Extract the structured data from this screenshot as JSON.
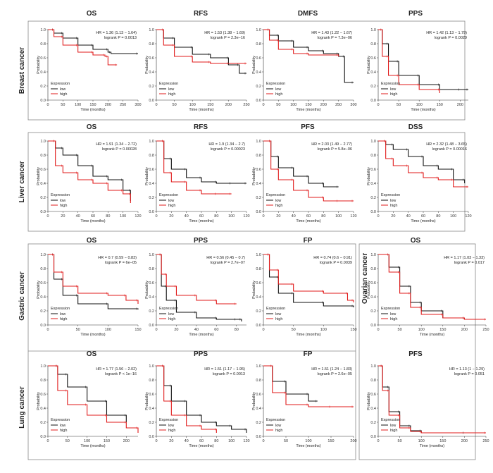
{
  "colors": {
    "low": "#111111",
    "high": "#e01b1b",
    "frame": "#888888"
  },
  "legend_title": "Expression",
  "legend_low": "low",
  "legend_high": "high",
  "xlabel": "Time (months)",
  "ylabel": "Probability",
  "rows": [
    {
      "label": "Breast cancer"
    },
    {
      "label": "Liver cancer"
    },
    {
      "label": "Gastric cancer"
    },
    {
      "label": "Lung cancer"
    }
  ],
  "ovarian_label": "Ovarian cancer",
  "chart_data": [
    {
      "type": "line",
      "title": "OS",
      "hr": "HR = 1.36 (1.13 − 1.64)",
      "p": "logrank P = 0.0013",
      "xmax": 300,
      "xticks": [
        0,
        50,
        100,
        150,
        200,
        250,
        300
      ],
      "yticks": [
        0,
        0.2,
        0.4,
        0.6,
        0.8,
        1.0
      ],
      "series": [
        {
          "name": "low",
          "x": [
            0,
            20,
            50,
            100,
            150,
            200,
            210,
            300
          ],
          "y": [
            1.0,
            0.95,
            0.88,
            0.78,
            0.72,
            0.68,
            0.66,
            0.66
          ]
        },
        {
          "name": "high",
          "x": [
            0,
            20,
            50,
            100,
            150,
            190,
            200,
            230
          ],
          "y": [
            1.0,
            0.9,
            0.78,
            0.68,
            0.64,
            0.62,
            0.5,
            0.5
          ]
        }
      ]
    },
    {
      "type": "line",
      "title": "RFS",
      "hr": "HR = 1.53 (1.38 − 1.69)",
      "p": "logrank P = 2.3e−16",
      "xmax": 250,
      "xticks": [
        0,
        50,
        100,
        150,
        200,
        250
      ],
      "yticks": [
        0,
        0.2,
        0.4,
        0.6,
        0.8,
        1.0
      ],
      "series": [
        {
          "name": "low",
          "x": [
            0,
            20,
            50,
            100,
            150,
            200,
            230,
            250
          ],
          "y": [
            1.0,
            0.88,
            0.75,
            0.65,
            0.6,
            0.5,
            0.38,
            0.38
          ]
        },
        {
          "name": "high",
          "x": [
            0,
            20,
            50,
            100,
            150,
            200,
            250
          ],
          "y": [
            1.0,
            0.78,
            0.62,
            0.54,
            0.52,
            0.52,
            0.52
          ]
        }
      ]
    },
    {
      "type": "line",
      "title": "DMFS",
      "hr": "HR = 1.43 (1.22 − 1.67)",
      "p": "logrank P = 7.3e−06",
      "xmax": 300,
      "xticks": [
        0,
        50,
        100,
        150,
        200,
        250,
        300
      ],
      "yticks": [
        0,
        0.2,
        0.4,
        0.6,
        0.8,
        1.0
      ],
      "series": [
        {
          "name": "low",
          "x": [
            0,
            20,
            50,
            100,
            150,
            200,
            250,
            270,
            300
          ],
          "y": [
            1.0,
            0.92,
            0.84,
            0.75,
            0.7,
            0.66,
            0.62,
            0.25,
            0.25
          ]
        },
        {
          "name": "high",
          "x": [
            0,
            20,
            50,
            100,
            150,
            250
          ],
          "y": [
            1.0,
            0.85,
            0.72,
            0.66,
            0.64,
            0.62
          ]
        }
      ]
    },
    {
      "type": "line",
      "title": "PPS",
      "hr": "HR = 1.42 (1.13 − 1.79)",
      "p": "logrank P = 0.0029",
      "xmax": 220,
      "xticks": [
        0,
        50,
        100,
        150,
        200
      ],
      "yticks": [
        0,
        0.2,
        0.4,
        0.6,
        0.8,
        1.0
      ],
      "series": [
        {
          "name": "low",
          "x": [
            0,
            10,
            25,
            50,
            100,
            150,
            200,
            220
          ],
          "y": [
            1.0,
            0.8,
            0.55,
            0.35,
            0.22,
            0.15,
            0.15,
            0.15
          ]
        },
        {
          "name": "high",
          "x": [
            0,
            10,
            25,
            50,
            100,
            150
          ],
          "y": [
            1.0,
            0.62,
            0.35,
            0.22,
            0.15,
            0.1
          ]
        }
      ]
    },
    {
      "type": "line",
      "title": "OS",
      "hr": "HR = 1.91 (1.34 − 2.72)",
      "p": "logrank P = 0.00028",
      "xmax": 120,
      "xticks": [
        0,
        20,
        40,
        60,
        80,
        100,
        120
      ],
      "yticks": [
        0,
        0.2,
        0.4,
        0.6,
        0.8,
        1.0
      ],
      "series": [
        {
          "name": "low",
          "x": [
            0,
            10,
            20,
            40,
            60,
            80,
            100,
            110
          ],
          "y": [
            1.0,
            0.9,
            0.8,
            0.65,
            0.5,
            0.45,
            0.3,
            0.15
          ]
        },
        {
          "name": "high",
          "x": [
            0,
            10,
            20,
            40,
            60,
            80,
            100,
            110
          ],
          "y": [
            1.0,
            0.65,
            0.55,
            0.45,
            0.4,
            0.3,
            0.25,
            0.12
          ]
        }
      ]
    },
    {
      "type": "line",
      "title": "RFS",
      "hr": "HR = 1.9 (1.34 − 2.7)",
      "p": "logrank P = 0.00023",
      "xmax": 120,
      "xticks": [
        0,
        20,
        40,
        60,
        80,
        100,
        120
      ],
      "yticks": [
        0,
        0.2,
        0.4,
        0.6,
        0.8,
        1.0
      ],
      "series": [
        {
          "name": "low",
          "x": [
            0,
            10,
            20,
            40,
            60,
            80,
            100,
            120
          ],
          "y": [
            1.0,
            0.75,
            0.6,
            0.48,
            0.42,
            0.4,
            0.4,
            0.4
          ]
        },
        {
          "name": "high",
          "x": [
            0,
            10,
            20,
            40,
            60,
            80,
            100
          ],
          "y": [
            1.0,
            0.55,
            0.42,
            0.3,
            0.25,
            0.25,
            0.25
          ]
        }
      ]
    },
    {
      "type": "line",
      "title": "PFS",
      "hr": "HR = 2.03 (1.49 − 2.77)",
      "p": "logrank P = 5.8e−06",
      "xmax": 120,
      "xticks": [
        0,
        20,
        40,
        60,
        80,
        100,
        120
      ],
      "yticks": [
        0,
        0.2,
        0.4,
        0.6,
        0.8,
        1.0
      ],
      "series": [
        {
          "name": "low",
          "x": [
            0,
            10,
            20,
            40,
            60,
            80,
            100
          ],
          "y": [
            1.0,
            0.78,
            0.62,
            0.5,
            0.4,
            0.35,
            0.35
          ]
        },
        {
          "name": "high",
          "x": [
            0,
            10,
            20,
            40,
            60,
            80,
            100,
            120
          ],
          "y": [
            1.0,
            0.6,
            0.45,
            0.3,
            0.2,
            0.15,
            0.15,
            0.15
          ]
        }
      ]
    },
    {
      "type": "line",
      "title": "DSS",
      "hr": "HR = 2.32 (1.48 − 3.65)",
      "p": "logrank P = 0.00016",
      "xmax": 120,
      "xticks": [
        0,
        20,
        40,
        60,
        80,
        100,
        120
      ],
      "yticks": [
        0,
        0.2,
        0.4,
        0.6,
        0.8,
        1.0
      ],
      "series": [
        {
          "name": "low",
          "x": [
            0,
            10,
            20,
            40,
            60,
            80,
            100,
            115
          ],
          "y": [
            1.0,
            0.95,
            0.88,
            0.78,
            0.65,
            0.6,
            0.45,
            0.4
          ]
        },
        {
          "name": "high",
          "x": [
            0,
            10,
            20,
            40,
            60,
            80,
            100,
            120
          ],
          "y": [
            1.0,
            0.75,
            0.65,
            0.55,
            0.48,
            0.45,
            0.35,
            0.35
          ]
        }
      ]
    },
    {
      "type": "line",
      "title": "OS",
      "hr": "HR = 0.7 (0.59 − 0.83)",
      "p": "logrank P = 6e−05",
      "xmax": 150,
      "xticks": [
        0,
        50,
        100,
        150
      ],
      "yticks": [
        0,
        0.2,
        0.4,
        0.6,
        0.8,
        1.0
      ],
      "series": [
        {
          "name": "low",
          "x": [
            0,
            10,
            25,
            50,
            100,
            150
          ],
          "y": [
            1.0,
            0.65,
            0.42,
            0.3,
            0.23,
            0.22
          ]
        },
        {
          "name": "high",
          "x": [
            0,
            10,
            25,
            50,
            100,
            130,
            150
          ],
          "y": [
            1.0,
            0.75,
            0.55,
            0.45,
            0.42,
            0.35,
            0.3
          ]
        }
      ]
    },
    {
      "type": "line",
      "title": "PPS",
      "hr": "HR = 0.56 (0.45 − 0.7)",
      "p": "logrank P = 2.7e−07",
      "xmax": 90,
      "xticks": [
        0,
        20,
        40,
        60,
        80
      ],
      "yticks": [
        0,
        0.2,
        0.4,
        0.6,
        0.8,
        1.0
      ],
      "series": [
        {
          "name": "low",
          "x": [
            0,
            5,
            10,
            20,
            40,
            60,
            80,
            85
          ],
          "y": [
            1.0,
            0.55,
            0.35,
            0.18,
            0.1,
            0.08,
            0.08,
            0.05
          ]
        },
        {
          "name": "high",
          "x": [
            0,
            5,
            10,
            20,
            40,
            60,
            80
          ],
          "y": [
            1.0,
            0.72,
            0.55,
            0.42,
            0.35,
            0.3,
            0.3
          ]
        }
      ]
    },
    {
      "type": "line",
      "title": "FP",
      "hr": "HR = 0.74 (0.6 − 0.91)",
      "p": "logrank P = 0.0039",
      "xmax": 150,
      "xticks": [
        0,
        50,
        100,
        150
      ],
      "yticks": [
        0,
        0.2,
        0.4,
        0.6,
        0.8,
        1.0
      ],
      "series": [
        {
          "name": "low",
          "x": [
            0,
            10,
            25,
            50,
            100,
            150
          ],
          "y": [
            1.0,
            0.68,
            0.45,
            0.32,
            0.27,
            0.25
          ]
        },
        {
          "name": "high",
          "x": [
            0,
            10,
            25,
            50,
            100,
            140,
            150
          ],
          "y": [
            1.0,
            0.78,
            0.58,
            0.48,
            0.45,
            0.35,
            0.32
          ]
        }
      ]
    },
    {
      "type": "line",
      "title": "OS",
      "hr": "HR = 1.17 (1.03 − 1.33)",
      "p": "logrank P = 0.017",
      "xmax": 250,
      "xticks": [
        0,
        50,
        100,
        150,
        200,
        250
      ],
      "yticks": [
        0,
        0.2,
        0.4,
        0.6,
        0.8,
        1.0
      ],
      "series": [
        {
          "name": "low",
          "x": [
            0,
            25,
            50,
            75,
            100,
            150,
            200
          ],
          "y": [
            1.0,
            0.82,
            0.55,
            0.32,
            0.2,
            0.1,
            0.08
          ]
        },
        {
          "name": "high",
          "x": [
            0,
            25,
            50,
            75,
            100,
            150,
            200,
            250
          ],
          "y": [
            1.0,
            0.75,
            0.45,
            0.25,
            0.15,
            0.1,
            0.08,
            0.08
          ]
        }
      ]
    },
    {
      "type": "line",
      "title": "OS",
      "hr": "HR = 1.77 (1.56 − 2.02)",
      "p": "logrank P < 1e−16",
      "xmax": 230,
      "xticks": [
        0,
        50,
        100,
        150,
        200
      ],
      "yticks": [
        0,
        0.2,
        0.4,
        0.6,
        0.8,
        1.0
      ],
      "series": [
        {
          "name": "low",
          "x": [
            0,
            25,
            50,
            100,
            150,
            200
          ],
          "y": [
            1.0,
            0.88,
            0.7,
            0.5,
            0.3,
            0.2
          ]
        },
        {
          "name": "high",
          "x": [
            0,
            25,
            50,
            100,
            150,
            200,
            230
          ],
          "y": [
            1.0,
            0.65,
            0.45,
            0.3,
            0.2,
            0.12,
            0.05
          ]
        }
      ]
    },
    {
      "type": "line",
      "title": "PPS",
      "hr": "HR = 1.51 (1.17 − 1.95)",
      "p": "logrank P = 0.0013",
      "xmax": 120,
      "xticks": [
        0,
        20,
        40,
        60,
        80,
        100,
        120
      ],
      "yticks": [
        0,
        0.2,
        0.4,
        0.6,
        0.8,
        1.0
      ],
      "series": [
        {
          "name": "low",
          "x": [
            0,
            10,
            20,
            40,
            60,
            80,
            100,
            120
          ],
          "y": [
            1.0,
            0.72,
            0.5,
            0.3,
            0.2,
            0.15,
            0.1,
            0.05
          ]
        },
        {
          "name": "high",
          "x": [
            0,
            10,
            20,
            40,
            60,
            80
          ],
          "y": [
            1.0,
            0.5,
            0.3,
            0.15,
            0.1,
            0.05
          ]
        }
      ]
    },
    {
      "type": "line",
      "title": "FP",
      "hr": "HR = 1.51 (1.24 − 1.83)",
      "p": "logrank P = 2.6e−05",
      "xmax": 200,
      "xticks": [
        0,
        50,
        100,
        150,
        200
      ],
      "yticks": [
        0,
        0.2,
        0.4,
        0.6,
        0.8,
        1.0
      ],
      "series": [
        {
          "name": "low",
          "x": [
            0,
            20,
            50,
            100,
            120
          ],
          "y": [
            1.0,
            0.78,
            0.6,
            0.5,
            0.5
          ]
        },
        {
          "name": "high",
          "x": [
            0,
            20,
            50,
            100,
            150,
            200
          ],
          "y": [
            1.0,
            0.62,
            0.45,
            0.42,
            0.42,
            0.42
          ]
        }
      ]
    },
    {
      "type": "line",
      "title": "PFS",
      "hr": "HR = 1.13 (1 − 1.29)",
      "p": "logrank P = 0.051",
      "xmax": 250,
      "xticks": [
        0,
        50,
        100,
        150,
        200,
        250
      ],
      "yticks": [
        0,
        0.2,
        0.4,
        0.6,
        0.8,
        1.0
      ],
      "series": [
        {
          "name": "low",
          "x": [
            0,
            10,
            25,
            50,
            75,
            100,
            200
          ],
          "y": [
            1.0,
            0.7,
            0.35,
            0.15,
            0.08,
            0.05,
            0.05
          ]
        },
        {
          "name": "high",
          "x": [
            0,
            10,
            25,
            50,
            75,
            100,
            250
          ],
          "y": [
            1.0,
            0.65,
            0.3,
            0.12,
            0.07,
            0.05,
            0.05
          ]
        }
      ]
    }
  ]
}
